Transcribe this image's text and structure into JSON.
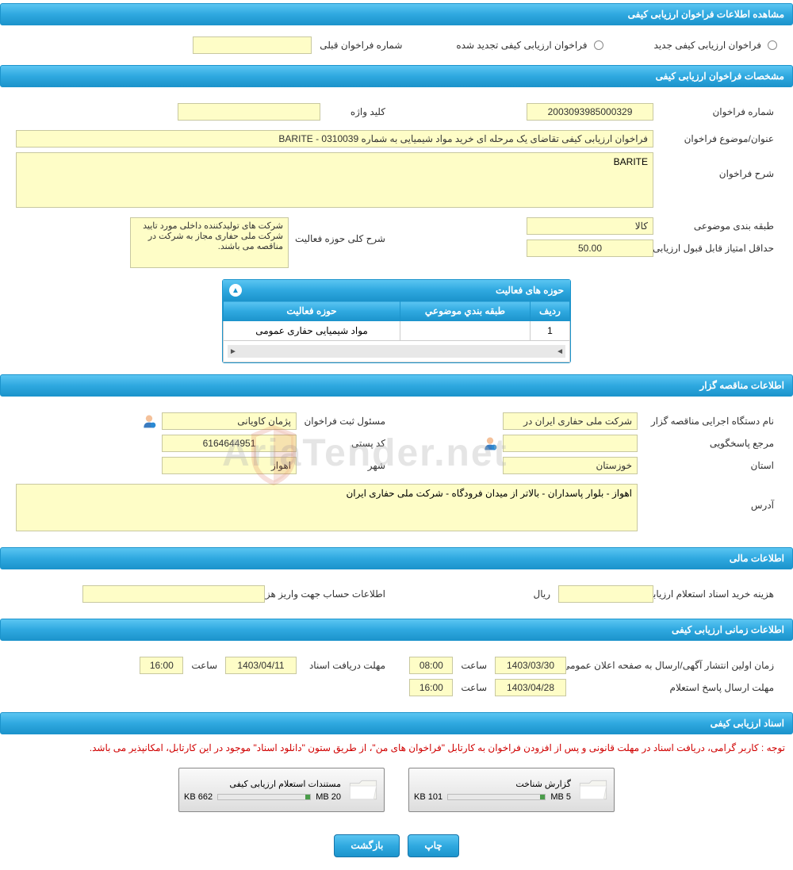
{
  "sections": {
    "s1_title": "مشاهده اطلاعات فراخوان ارزیابی کیفی",
    "s2_title": "مشخصات فراخوان ارزیابی کیفی",
    "s3_title": "اطلاعات مناقصه گزار",
    "s4_title": "اطلاعات مالی",
    "s5_title": "اطلاعات زمانی ارزیابی کیفی",
    "s6_title": "اسناد ارزیابی کیفی"
  },
  "radios": {
    "r1_label": "فراخوان ارزیابی کیفی جدید",
    "r2_label": "فراخوان ارزیابی کیفی تجدید شده",
    "prev_label": "شماره فراخوان قبلی",
    "prev_value": ""
  },
  "spec": {
    "number_label": "شماره فراخوان",
    "number_value": "2003093985000329",
    "keyword_label": "کلید واژه",
    "keyword_value": "",
    "subject_label": "عنوان/موضوع فراخوان",
    "subject_value": "فراخوان ارزیابی کیفی تقاضای یک مرحله ای خرید مواد شیمیایی به شماره BARITE - 0310039",
    "desc_label": "شرح فراخوان",
    "desc_value": "BARITE",
    "category_label": "طبقه بندی موضوعی",
    "category_value": "کالا",
    "scope_label": "شرح کلی حوزه فعالیت",
    "scope_value": "شرکت های تولیدکننده داخلی مورد تایید شرکت ملی حفاری مجاز به شرکت در مناقصه می باشند.",
    "minscore_label": "حداقل امتیاز قابل قبول ارزیابی کیفی",
    "minscore_value": "50.00"
  },
  "activity_table": {
    "title": "حوزه های فعالیت",
    "col1": "ردیف",
    "col2": "طبقه بندي موضوعي",
    "col3": "حوزه فعالیت",
    "row1_c1": "1",
    "row1_c2": "",
    "row1_c3": "مواد شیمیایی حفاری عمومی"
  },
  "tenderer": {
    "org_label": "نام دستگاه اجرایی مناقصه گزار",
    "org_value": "شرکت ملی حفاری ایران در",
    "registrar_label": "مسئول ثبت فراخوان",
    "registrar_value": "پژمان کاویانی",
    "contact_label": "مرجع پاسخگویی",
    "contact_value": "",
    "postal_label": "کد پستی",
    "postal_value": "6164644951",
    "province_label": "استان",
    "province_value": "خوزستان",
    "city_label": "شهر",
    "city_value": "اهواز",
    "address_label": "آدرس",
    "address_value": "اهواز - بلوار پاسداران - بالاتر از میدان فرودگاه - شرکت ملی حفاری ایران"
  },
  "financial": {
    "cost_label": "هزینه خرید اسناد استعلام ارزیابی کیفی",
    "cost_value": "",
    "currency": "ریال",
    "account_label": "اطلاعات حساب جهت واریز هزینه خرید اسناد",
    "account_value": ""
  },
  "timing": {
    "publish_label": "زمان اولین انتشار آگهی/ارسال به صفحه اعلان عمومی",
    "publish_date": "1403/03/30",
    "publish_hour_label": "ساعت",
    "publish_hour": "08:00",
    "receive_label": "مهلت دریافت اسناد",
    "receive_date": "1403/04/11",
    "receive_hour_label": "ساعت",
    "receive_hour": "16:00",
    "reply_label": "مهلت ارسال پاسخ استعلام",
    "reply_date": "1403/04/28",
    "reply_hour_label": "ساعت",
    "reply_hour": "16:00"
  },
  "docs": {
    "notice": "توجه : کاربر گرامی، دریافت اسناد در مهلت قانونی و پس از افزودن فراخوان به کارتابل \"فراخوان های من\"، از طریق ستون \"دانلود اسناد\" موجود در این کارتابل، امکانپذیر می باشد.",
    "doc1_title": "گزارش شناخت",
    "doc1_size": "101 KB",
    "doc1_total": "5 MB",
    "doc1_pct": 5,
    "doc2_title": "مستندات استعلام ارزیابی کیفی",
    "doc2_size": "662 KB",
    "doc2_total": "20 MB",
    "doc2_pct": 5
  },
  "buttons": {
    "print": "چاپ",
    "back": "بازگشت"
  },
  "watermark": "AriaTender.net",
  "colors": {
    "header_gradient_top": "#5bc5f2",
    "header_gradient_mid": "#2fa9e0",
    "header_gradient_bot": "#1c94cc",
    "field_bg": "#fefdc7",
    "field_border": "#c8c8a0",
    "notice_color": "#d00000"
  }
}
